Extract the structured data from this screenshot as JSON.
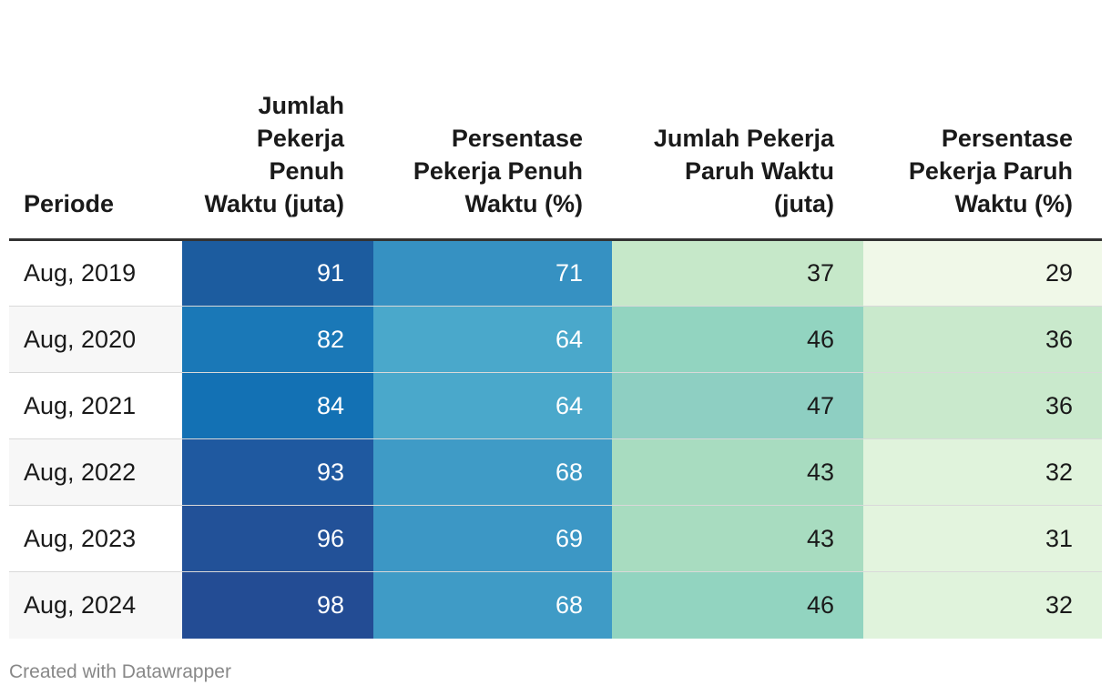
{
  "chart_data": {
    "type": "table",
    "columns": [
      "Periode",
      "Jumlah Pekerja Penuh Waktu (juta)",
      "Persentase Pekerja Penuh Waktu (%)",
      "Jumlah Pekerja Paruh Waktu (juta)",
      "Persentase Pekerja Paruh Waktu (%)"
    ],
    "rows": [
      [
        "Aug, 2019",
        "91",
        "71",
        "37",
        "29"
      ],
      [
        "Aug, 2020",
        "82",
        "64",
        "46",
        "36"
      ],
      [
        "Aug, 2021",
        "84",
        "64",
        "47",
        "36"
      ],
      [
        "Aug, 2022",
        "93",
        "68",
        "43",
        "32"
      ],
      [
        "Aug, 2023",
        "96",
        "69",
        "43",
        "31"
      ],
      [
        "Aug, 2024",
        "98",
        "68",
        "46",
        "32"
      ]
    ],
    "cell_colors": [
      [
        null,
        "#1c5c9f",
        "#3691c2",
        "#c6e8c9",
        "#f0f8e8"
      ],
      [
        null,
        "#1a78b7",
        "#4aa8cb",
        "#92d4c0",
        "#c9e9cc"
      ],
      [
        null,
        "#1371b4",
        "#4aa8cb",
        "#8ecfc2",
        "#c9e9cc"
      ],
      [
        null,
        "#1f59a0",
        "#3f9bc6",
        "#a8dcc0",
        "#e0f3dc"
      ],
      [
        null,
        "#225198",
        "#3c97c5",
        "#a8dcc0",
        "#e3f4de"
      ],
      [
        null,
        "#234c94",
        "#3f9bc6",
        "#92d4c0",
        "#e0f3dc"
      ]
    ],
    "light_text_columns": [
      1,
      2
    ]
  },
  "footer": "Created with Datawrapper"
}
